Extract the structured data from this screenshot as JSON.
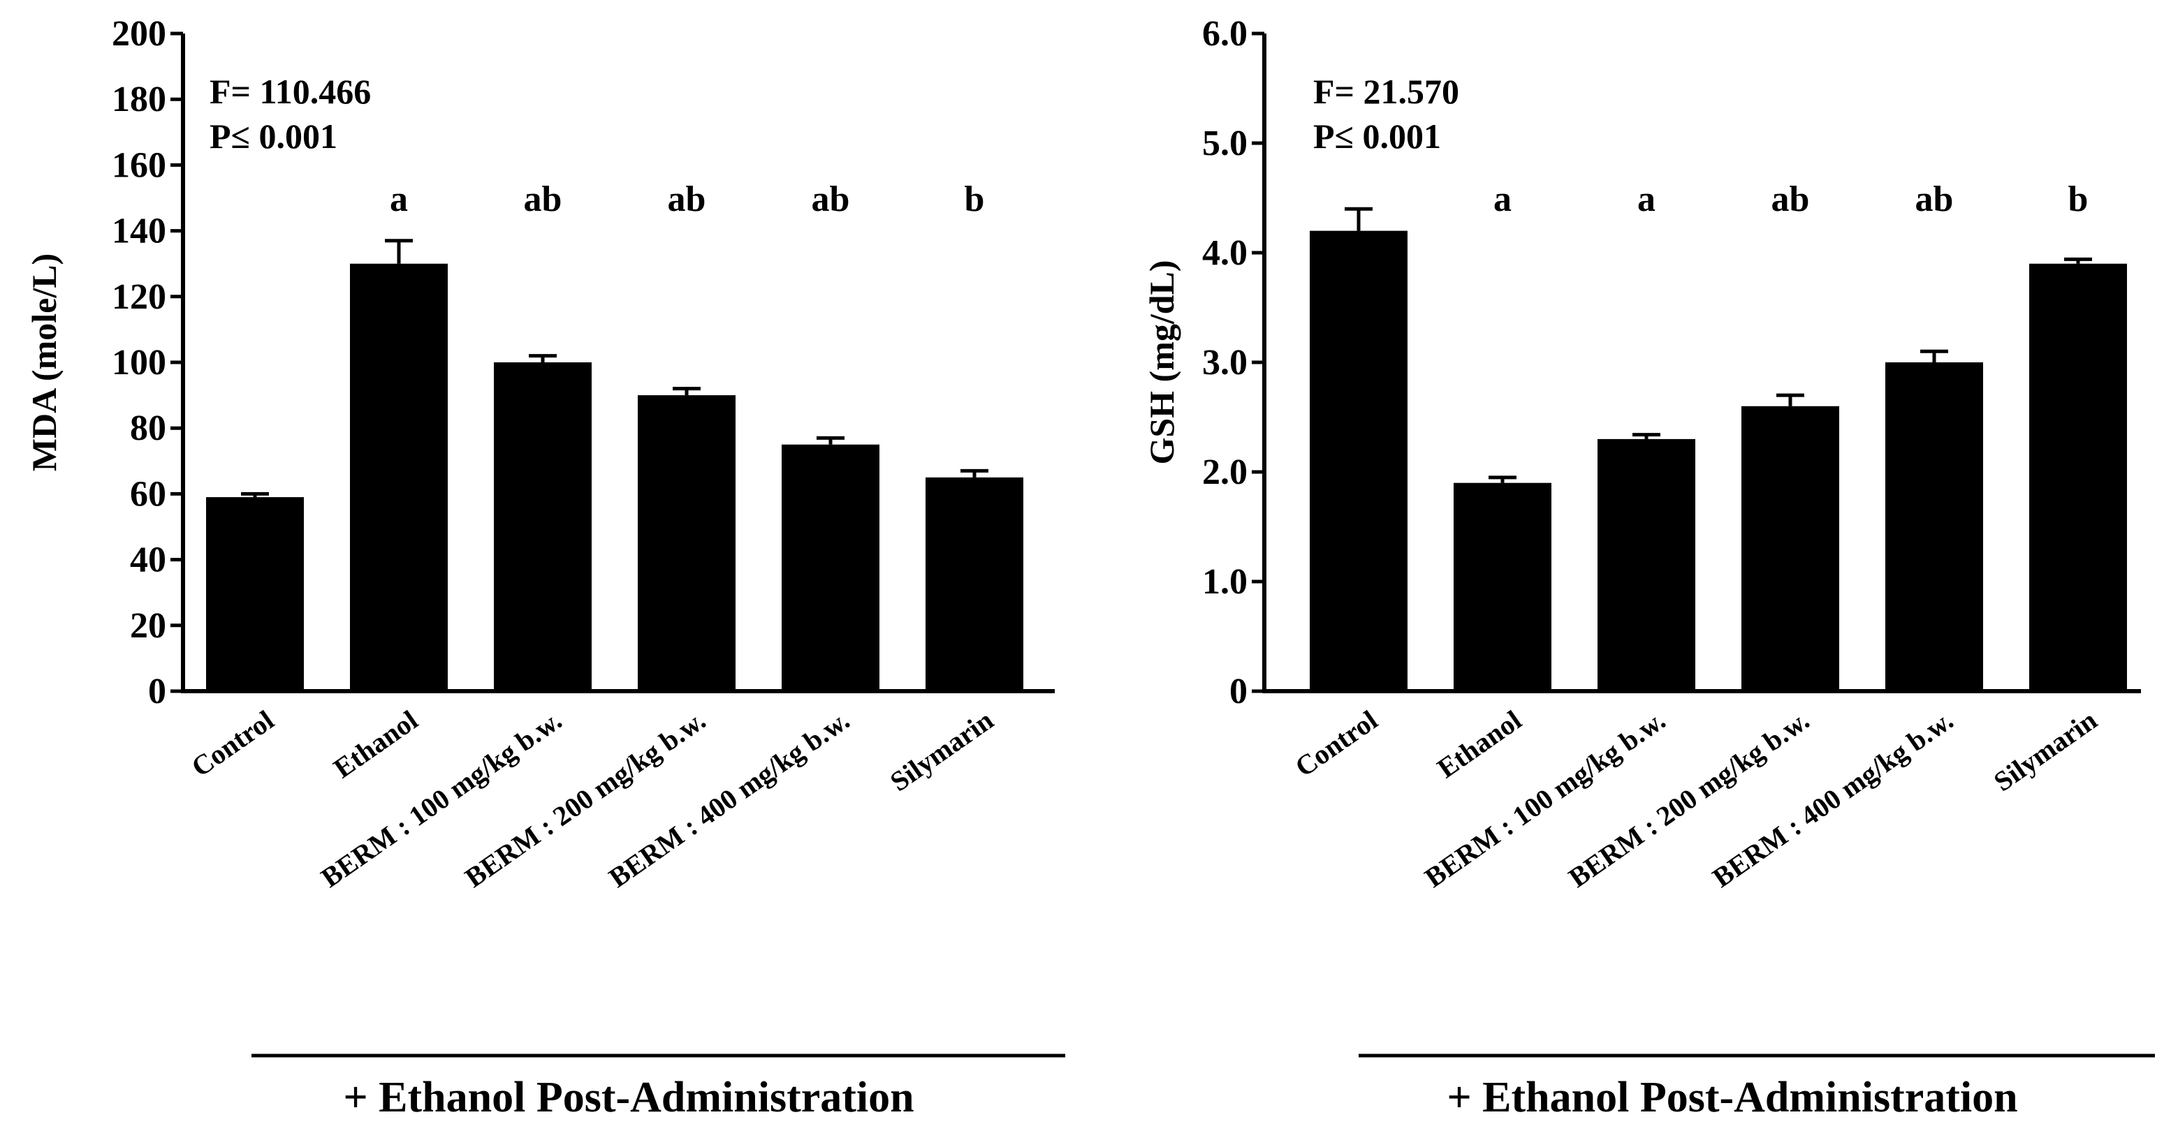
{
  "chart_data": [
    {
      "type": "bar",
      "title": "",
      "ylabel": "MDA (mole/L)",
      "xlabel": "",
      "ylim": [
        0,
        200
      ],
      "yticks": [
        "0",
        "20",
        "40",
        "60",
        "80",
        "100",
        "120",
        "140",
        "160",
        "180",
        "200"
      ],
      "ytick_values": [
        0,
        20,
        40,
        60,
        80,
        100,
        120,
        140,
        160,
        180,
        200
      ],
      "categories": [
        "Control",
        "Ethanol",
        "BERM : 100 mg/kg b.w.",
        "BERM : 200 mg/kg b.w.",
        "BERM : 400 mg/kg b.w.",
        "Silymarin"
      ],
      "values": [
        59,
        130,
        100,
        90,
        75,
        65
      ],
      "errors": [
        1,
        7,
        2,
        2,
        2,
        2
      ],
      "significance": [
        "",
        "a",
        "ab",
        "ab",
        "ab",
        "b"
      ],
      "stat_f": "F= 110.466",
      "stat_p": "P≤ 0.001",
      "group_label": "+ Ethanol Post-Administration",
      "bar_color": "#000000"
    },
    {
      "type": "bar",
      "title": "",
      "ylabel": "GSH (mg/dL)",
      "xlabel": "",
      "ylim": [
        0,
        6
      ],
      "yticks": [
        "0",
        "1.0",
        "2.0",
        "3.0",
        "4.0",
        "5.0",
        "6.0"
      ],
      "ytick_values": [
        0,
        1,
        2,
        3,
        4,
        5,
        6
      ],
      "categories": [
        "Control",
        "Ethanol",
        "BERM : 100 mg/kg b.w.",
        "BERM : 200 mg/kg b.w.",
        "BERM : 400 mg/kg b.w.",
        "Silymarin"
      ],
      "values": [
        4.2,
        1.9,
        2.3,
        2.6,
        3.0,
        3.9
      ],
      "errors": [
        0.2,
        0.05,
        0.04,
        0.1,
        0.1,
        0.04
      ],
      "significance": [
        "",
        "a",
        "a",
        "ab",
        "ab",
        "b"
      ],
      "stat_f": "F= 21.570",
      "stat_p": "P≤ 0.001",
      "group_label": "+ Ethanol Post-Administration",
      "bar_color": "#000000"
    }
  ]
}
